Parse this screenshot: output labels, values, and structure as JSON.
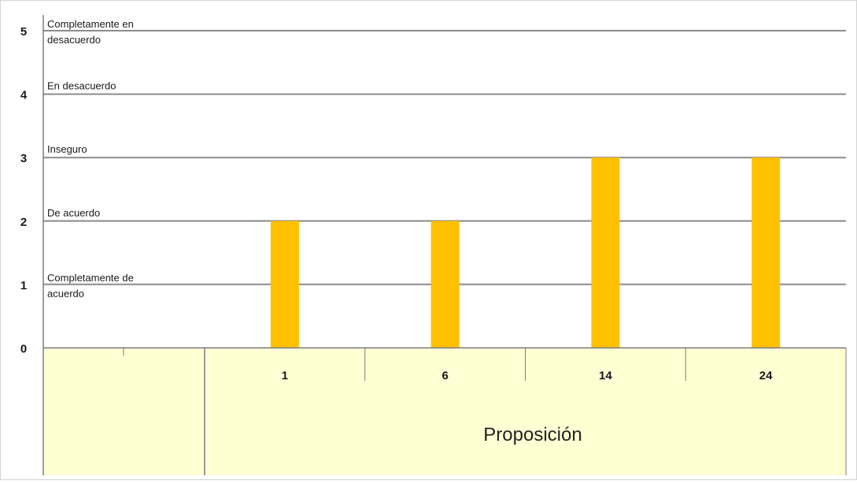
{
  "chart_data": {
    "type": "bar",
    "categories": [
      "1",
      "6",
      "14",
      "24"
    ],
    "values": [
      2,
      2,
      3,
      3
    ],
    "ylim": [
      0,
      5
    ],
    "yticks": [
      "0",
      "1",
      "2",
      "3",
      "4",
      "5"
    ],
    "xlabel": "Proposición",
    "level_labels": [
      {
        "value": 5,
        "text": "Completamente en desacuerdo",
        "lines": [
          "Completamente en",
          "desacuerdo"
        ]
      },
      {
        "value": 4,
        "text": "En desacuerdo",
        "lines": [
          "En desacuerdo"
        ]
      },
      {
        "value": 3,
        "text": "Inseguro",
        "lines": [
          "Inseguro"
        ]
      },
      {
        "value": 2,
        "text": "De acuerdo",
        "lines": [
          "De acuerdo"
        ]
      },
      {
        "value": 1,
        "text": "Completamente de acuerdo",
        "lines": [
          "Completamente de",
          "acuerdo"
        ]
      }
    ],
    "grid": true,
    "legend": "none",
    "colors": {
      "bar": "#FFC000",
      "plot_area": "#FFFFFF",
      "axis_area": "#FFFFD4",
      "gridline": "#8C8C8C",
      "axis_line": "#7F7F7F"
    }
  }
}
